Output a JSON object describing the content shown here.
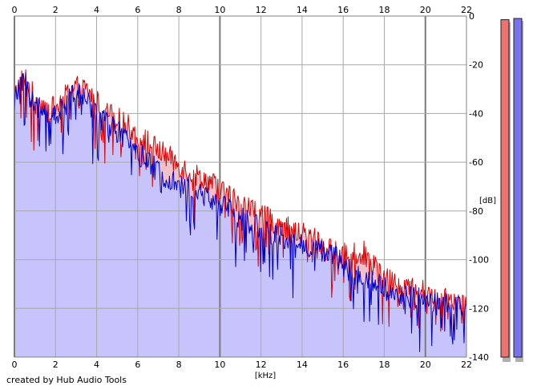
{
  "credit": "created by Hub Audio Tools",
  "chart_data": {
    "type": "area",
    "xlabel": "[kHz]",
    "ylabel": "[dB]",
    "xlim": [
      0,
      22
    ],
    "ylim": [
      -140,
      0
    ],
    "x_ticks": [
      0,
      2,
      4,
      6,
      8,
      10,
      12,
      14,
      16,
      18,
      20,
      22
    ],
    "y_ticks": [
      0,
      -20,
      -40,
      -60,
      -80,
      -100,
      -120,
      -140
    ],
    "grid": true,
    "series": [
      {
        "color": "#e00000",
        "x": [
          0,
          0.25,
          0.5,
          0.75,
          1,
          1.5,
          2,
          2.5,
          3,
          3.5,
          4,
          4.5,
          5,
          5.5,
          6,
          6.5,
          7,
          7.5,
          8,
          8.5,
          9,
          9.5,
          10,
          10.5,
          11,
          11.5,
          12,
          12.5,
          13,
          13.5,
          14,
          14.5,
          15,
          15.5,
          16,
          16.5,
          17,
          17.5,
          18,
          18.5,
          19,
          19.5,
          20,
          20.5,
          21,
          21.5,
          22
        ],
        "values": [
          -33,
          -28,
          -25,
          -30,
          -34,
          -37,
          -38,
          -33,
          -29,
          -30,
          -35,
          -40,
          -42,
          -45,
          -49,
          -52,
          -55,
          -58,
          -61,
          -64,
          -66,
          -68,
          -71,
          -74,
          -77,
          -79,
          -82,
          -84,
          -86,
          -88,
          -89,
          -91,
          -94,
          -97,
          -98,
          -98,
          -97,
          -102,
          -108,
          -110,
          -111,
          -112,
          -113,
          -114,
          -115,
          -116,
          -117
        ]
      },
      {
        "color": "#0000c8",
        "x": [
          0,
          0.25,
          0.5,
          0.75,
          1,
          1.5,
          2,
          2.5,
          3,
          3.5,
          4,
          4.5,
          5,
          5.5,
          6,
          6.5,
          7,
          7.5,
          8,
          8.5,
          9,
          9.5,
          10,
          10.5,
          11,
          11.5,
          12,
          12.5,
          13,
          13.5,
          14,
          14.5,
          15,
          15.5,
          16,
          16.5,
          17,
          17.5,
          18,
          18.5,
          19,
          19.5,
          20,
          20.5,
          21,
          21.5,
          22
        ],
        "values": [
          -35,
          -30,
          -27,
          -33,
          -37,
          -40,
          -41,
          -36,
          -32,
          -34,
          -40,
          -44,
          -47,
          -52,
          -56,
          -60,
          -64,
          -66,
          -68,
          -71,
          -73,
          -75,
          -77,
          -80,
          -83,
          -85,
          -87,
          -89,
          -91,
          -93,
          -94,
          -95,
          -96,
          -98,
          -102,
          -106,
          -108,
          -109,
          -112,
          -114,
          -115,
          -116,
          -117,
          -118,
          -118,
          -119,
          -120
        ]
      }
    ],
    "level_meters": [
      {
        "color": "#ef7272",
        "level": -1.5
      },
      {
        "color": "#7a72ef",
        "level": -1
      }
    ]
  }
}
